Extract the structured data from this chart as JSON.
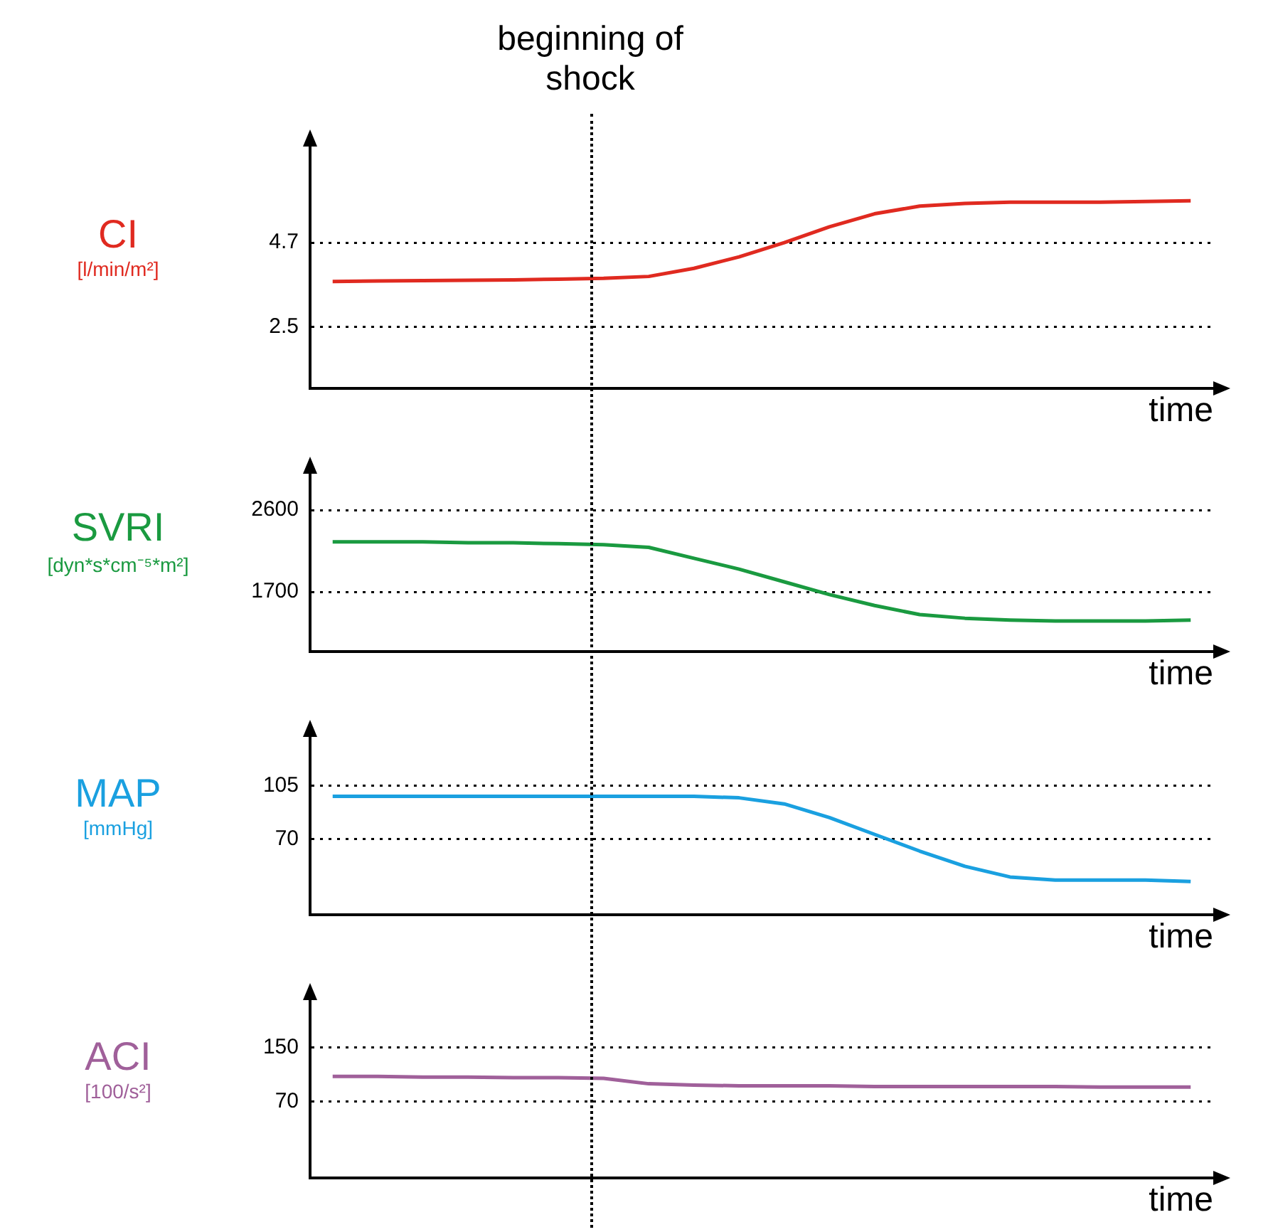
{
  "chart_data": [
    {
      "type": "line",
      "ylabel": "CI [l/min/m²]",
      "xlabel": "time",
      "annotations": [
        "beginning of shock"
      ],
      "categories": [
        null,
        null,
        null,
        null,
        null,
        null,
        null,
        null,
        null,
        null,
        null,
        null,
        null,
        null,
        null,
        null,
        null,
        null,
        null,
        null
      ],
      "ylim": [
        0.9,
        7.2
      ],
      "yticks": [
        2.5,
        4.7
      ],
      "tick_labels": "y",
      "grid": "y",
      "marker": "none",
      "line_style": "solid",
      "series": [
        {
          "color": "#e02a20",
          "values": [
            3.69,
            3.7,
            3.71,
            3.72,
            3.73,
            3.75,
            3.77,
            3.82,
            4.03,
            4.33,
            4.7,
            5.11,
            5.45,
            5.65,
            5.72,
            5.75,
            5.75,
            5.75,
            5.77,
            5.79
          ]
        }
      ]
    },
    {
      "type": "line",
      "ylabel": "SVRI [dyn*s*cm⁻⁵*m²]",
      "xlabel": "time",
      "categories": [
        null,
        null,
        null,
        null,
        null,
        null,
        null,
        null,
        null,
        null,
        null,
        null,
        null,
        null,
        null,
        null,
        null,
        null,
        null,
        null
      ],
      "ylim": [
        1040,
        3000
      ],
      "yticks": [
        1700,
        2600
      ],
      "tick_labels": "y",
      "grid": "y",
      "marker": "none",
      "line_style": "solid",
      "series": [
        {
          "color": "#1a9a40",
          "values": [
            2250,
            2250,
            2250,
            2240,
            2240,
            2230,
            2220,
            2190,
            2070,
            1950,
            1810,
            1670,
            1550,
            1450,
            1410,
            1390,
            1380,
            1380,
            1380,
            1390
          ]
        }
      ]
    },
    {
      "type": "line",
      "ylabel": "MAP [mmHg]",
      "xlabel": "time",
      "categories": [
        null,
        null,
        null,
        null,
        null,
        null,
        null,
        null,
        null,
        null,
        null,
        null,
        null,
        null,
        null,
        null,
        null,
        null,
        null,
        null
      ],
      "ylim": [
        20,
        137
      ],
      "yticks": [
        70,
        105
      ],
      "tick_labels": "y",
      "grid": "y",
      "marker": "none",
      "line_style": "solid",
      "series": [
        {
          "color": "#1aa0e0",
          "values": [
            98,
            98,
            98,
            98,
            98,
            98,
            98,
            98,
            98,
            97,
            93,
            84,
            73,
            62,
            52,
            45,
            43,
            43,
            43,
            42
          ]
        }
      ]
    },
    {
      "type": "line",
      "ylabel": "ACI [100/s²]",
      "xlabel": "time",
      "categories": [
        null,
        null,
        null,
        null,
        null,
        null,
        null,
        null,
        null,
        null,
        null,
        null,
        null,
        null,
        null,
        null,
        null,
        null,
        null,
        null
      ],
      "ylim": [
        -44,
        220
      ],
      "yticks": [
        70,
        150
      ],
      "tick_labels": "y",
      "grid": "y",
      "marker": "none",
      "line_style": "solid",
      "series": [
        {
          "color": "#a0609a",
          "values": [
            107,
            107,
            106,
            106,
            105,
            105,
            104,
            96,
            94,
            93,
            93,
            93,
            92,
            92,
            92,
            92,
            92,
            91,
            91,
            91
          ]
        }
      ]
    }
  ]
}
